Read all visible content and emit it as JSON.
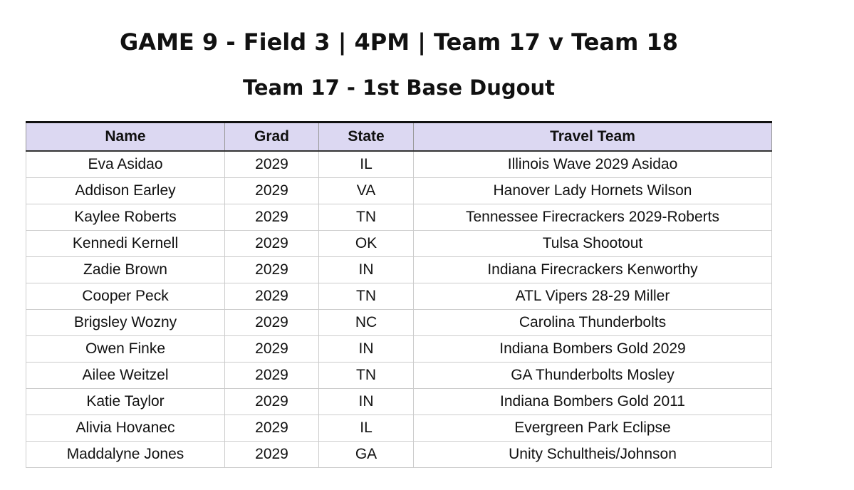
{
  "header": {
    "title": "GAME 9 - Field 3 | 4PM | Team 17 v Team 18",
    "subtitle": "Team 17 - 1st Base Dugout"
  },
  "table": {
    "columns": [
      "Name",
      "Grad",
      "State",
      "Travel Team"
    ],
    "rows": [
      [
        "Eva Asidao",
        "2029",
        "IL",
        "Illinois Wave 2029 Asidao"
      ],
      [
        "Addison Earley",
        "2029",
        "VA",
        "Hanover Lady Hornets Wilson"
      ],
      [
        "Kaylee Roberts",
        "2029",
        "TN",
        "Tennessee Firecrackers 2029-Roberts"
      ],
      [
        "Kennedi Kernell",
        "2029",
        "OK",
        "Tulsa Shootout"
      ],
      [
        "Zadie Brown",
        "2029",
        "IN",
        "Indiana Firecrackers Kenworthy"
      ],
      [
        "Cooper Peck",
        "2029",
        "TN",
        "ATL Vipers 28-29 Miller"
      ],
      [
        "Brigsley Wozny",
        "2029",
        "NC",
        "Carolina Thunderbolts"
      ],
      [
        "Owen Finke",
        "2029",
        "IN",
        "Indiana Bombers Gold 2029"
      ],
      [
        "Ailee Weitzel",
        "2029",
        "TN",
        "GA Thunderbolts Mosley"
      ],
      [
        "Katie Taylor",
        "2029",
        "IN",
        "Indiana Bombers Gold 2011"
      ],
      [
        "Alivia Hovanec",
        "2029",
        "IL",
        "Evergreen Park Eclipse"
      ],
      [
        "Maddalyne Jones",
        "2029",
        "GA",
        "Unity Schultheis/Johnson"
      ]
    ]
  }
}
